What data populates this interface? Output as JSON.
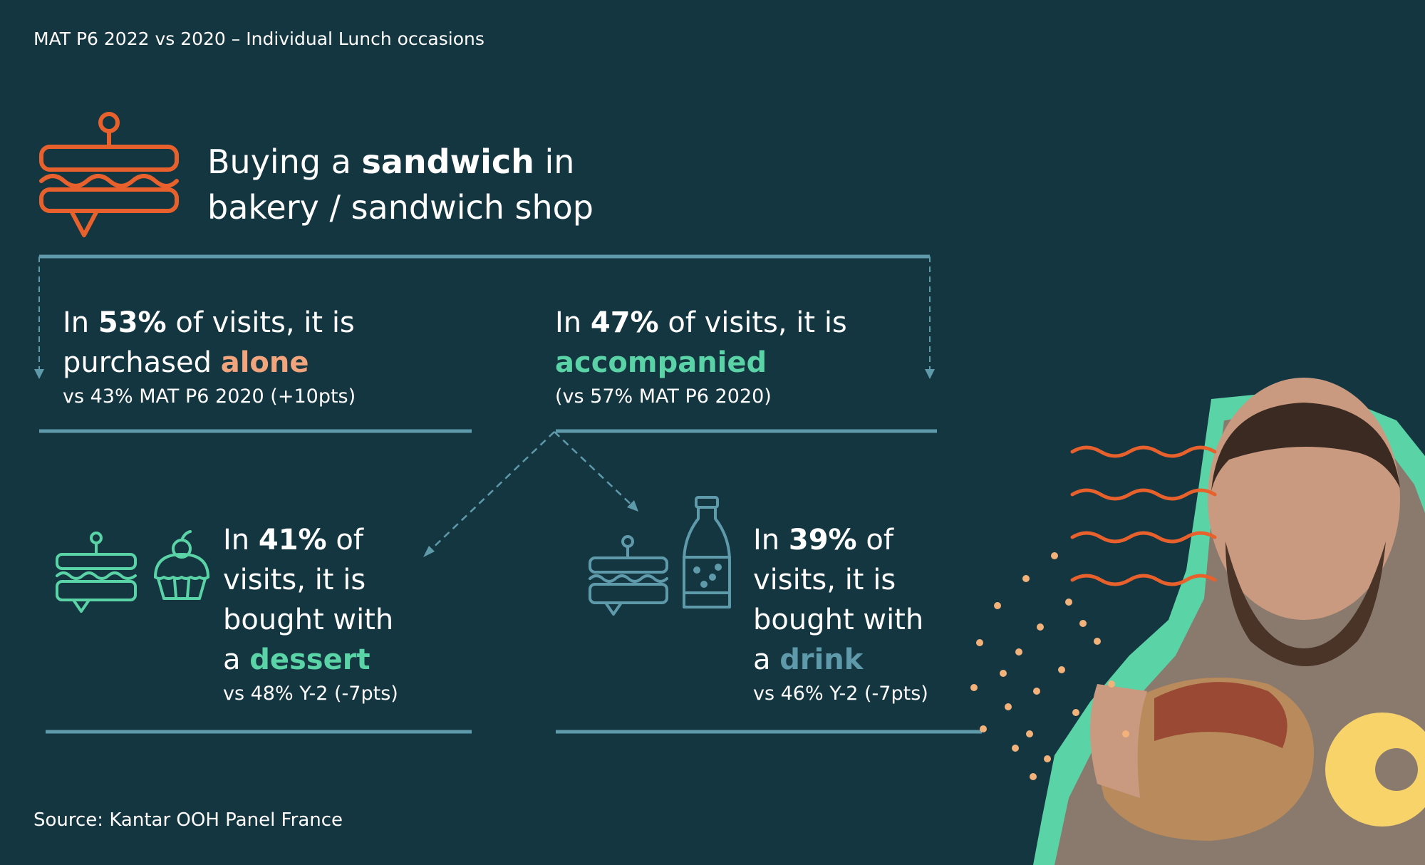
{
  "header": {
    "subtitle": "MAT P6 2022 vs 2020 – Individual Lunch occasions"
  },
  "headline": {
    "prefix": "Buying a ",
    "bold": "sandwich",
    "suffix": " in",
    "line2": "bakery / sandwich shop"
  },
  "alone": {
    "pre": "In ",
    "pct": "53%",
    "mid": " of visits, it is",
    "line2": "purchased ",
    "keyword": "alone",
    "compare": "vs 43% MAT P6 2020 (+10pts)"
  },
  "accompanied": {
    "pre": "In ",
    "pct": "47%",
    "mid": " of visits, it is",
    "keyword": "accompanied",
    "compare": "(vs 57% MAT P6 2020)"
  },
  "dessert": {
    "pre": "In ",
    "pct": "41%",
    "mid": " of",
    "line2": "visits, it is",
    "line3": "bought with",
    "line4pre": "a ",
    "keyword": "dessert",
    "compare": "vs 48% Y-2 (-7pts)"
  },
  "drink": {
    "pre": "In ",
    "pct": "39%",
    "mid": " of",
    "line2": "visits, it is",
    "line3": "bought with",
    "line4pre": "a ",
    "keyword": "drink",
    "compare": "vs 46% Y-2 (-7pts)"
  },
  "footer": {
    "source": "Source: Kantar OOH Panel France"
  },
  "colors": {
    "background": "#143641",
    "orange": "#e8612c",
    "green": "#5ad3a6",
    "teal": "#5f9aab",
    "peach": "#f2a57c",
    "yellow": "#f8d36a"
  },
  "icons": [
    "sandwich-icon",
    "cupcake-icon",
    "bottle-icon"
  ]
}
